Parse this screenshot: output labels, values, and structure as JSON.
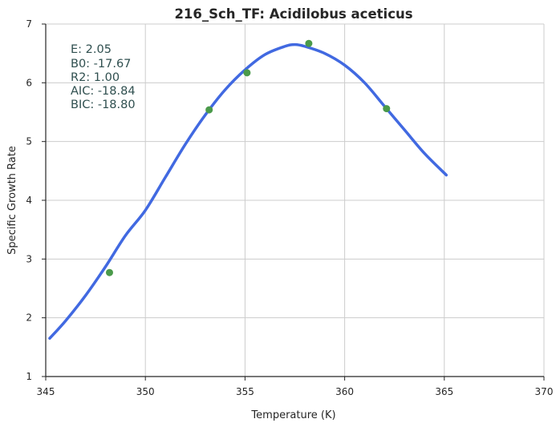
{
  "chart_data": {
    "type": "scatter",
    "title": "216_Sch_TF: Acidilobus aceticus",
    "xlabel": "Temperature (K)",
    "ylabel": "Specific Growth Rate",
    "xlim": [
      345,
      370
    ],
    "ylim": [
      1,
      7
    ],
    "xticks": [
      345,
      350,
      355,
      360,
      365,
      370
    ],
    "yticks": [
      1,
      2,
      3,
      4,
      5,
      6,
      7
    ],
    "grid": true,
    "series": [
      {
        "kind": "points",
        "color": "#4a9a4a",
        "x": [
          348.2,
          353.2,
          355.1,
          358.2,
          362.1
        ],
        "y": [
          2.77,
          5.54,
          6.17,
          6.67,
          5.56
        ]
      },
      {
        "kind": "line",
        "color": "#4169e1",
        "x": [
          345.2,
          346,
          347,
          348,
          349,
          350,
          351,
          352,
          353,
          354,
          355,
          356,
          357,
          357.5,
          358,
          359,
          360,
          361,
          362,
          363,
          364,
          365.1
        ],
        "y": [
          1.65,
          1.95,
          2.38,
          2.87,
          3.4,
          3.83,
          4.39,
          4.95,
          5.45,
          5.88,
          6.22,
          6.48,
          6.62,
          6.65,
          6.62,
          6.5,
          6.3,
          6.0,
          5.6,
          5.2,
          4.8,
          4.43
        ]
      }
    ],
    "annotations": [
      "E:  2.05",
      "B0:  -17.67",
      "R2:  1.00",
      "AIC: -18.84",
      "BIC: -18.80"
    ]
  }
}
